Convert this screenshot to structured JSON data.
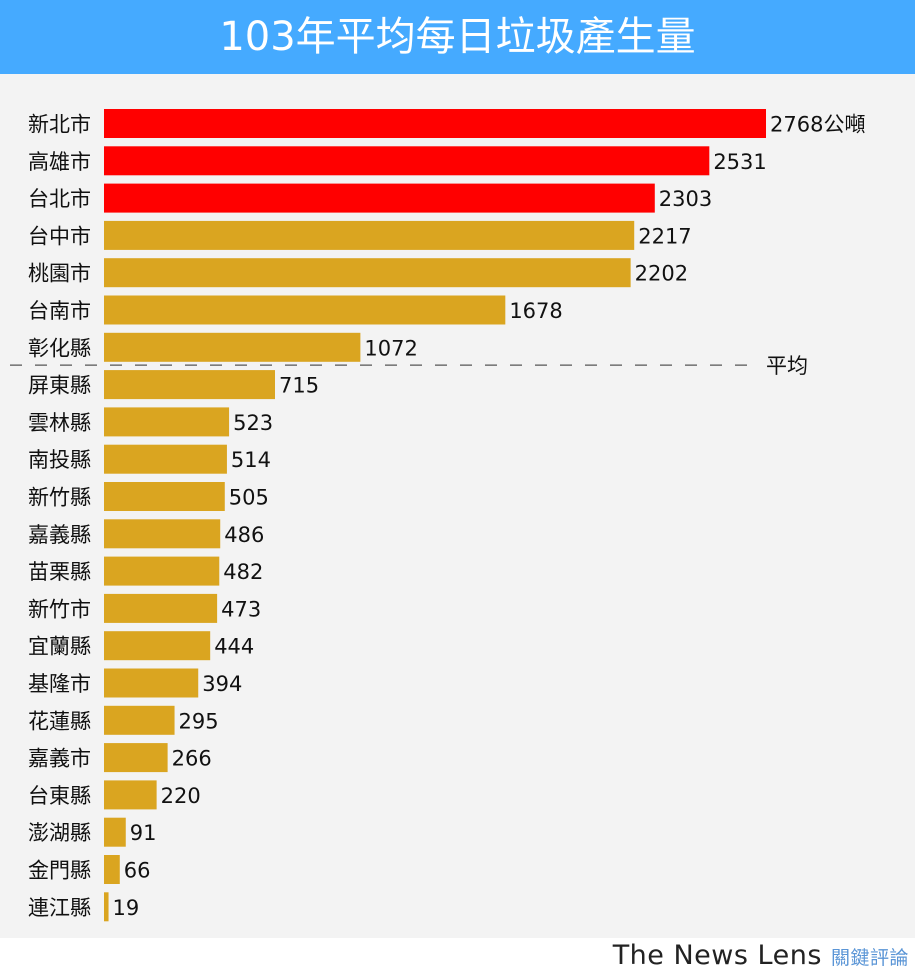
{
  "chart_data": {
    "type": "bar",
    "orientation": "horizontal",
    "title": "103年平均每日垃圾產生量",
    "unit": "公噸",
    "categories": [
      "新北市",
      "高雄市",
      "台北市",
      "台中市",
      "桃園市",
      "台南市",
      "彰化縣",
      "屏東縣",
      "雲林縣",
      "南投縣",
      "新竹縣",
      "嘉義縣",
      "苗栗縣",
      "新竹市",
      "宜蘭縣",
      "基隆市",
      "花蓮縣",
      "嘉義市",
      "台東縣",
      "澎湖縣",
      "金門縣",
      "連江縣"
    ],
    "values": [
      2768,
      2531,
      2303,
      2217,
      2202,
      1678,
      1072,
      715,
      523,
      514,
      505,
      486,
      482,
      473,
      444,
      394,
      295,
      266,
      220,
      91,
      66,
      19
    ],
    "highlight_count": 3,
    "average_line": {
      "label": "平均",
      "position": "between 彰化縣 and 屏東縣"
    },
    "colors": {
      "highlight": "#ff0000",
      "default": "#daa520",
      "title_bg": "#45aaff",
      "plot_bg": "#f3f3f3"
    },
    "grid": false
  },
  "footer": {
    "brand": "The News Lens",
    "brand_zh": "關鍵評論"
  }
}
